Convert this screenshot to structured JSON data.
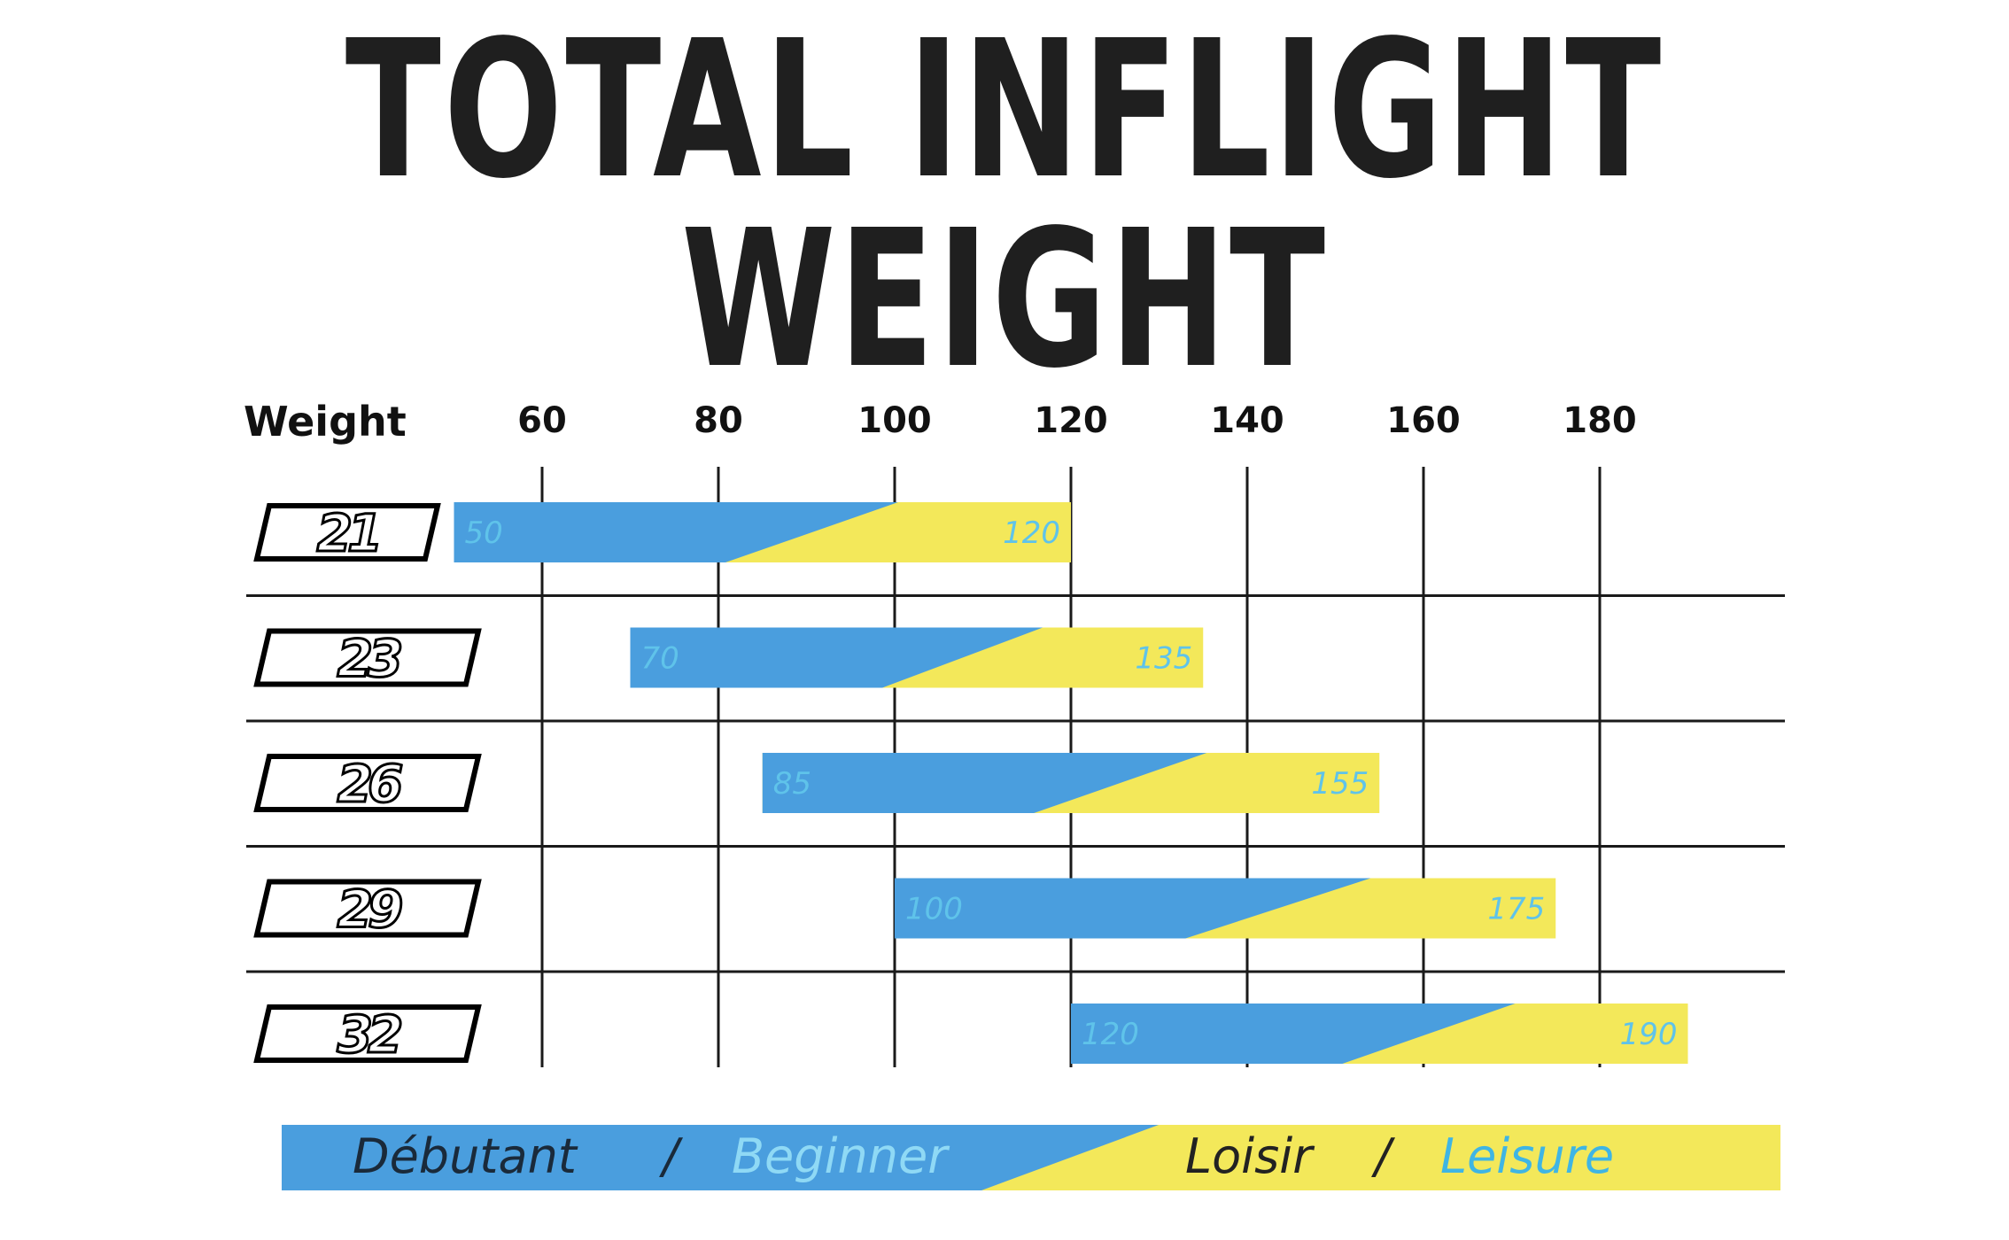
{
  "title": "TOTAL INFLIGHT WEIGHT",
  "chart_data": {
    "type": "bar",
    "orientation": "horizontal-range",
    "xlabel": "Weight",
    "x_ticks": [
      60,
      80,
      100,
      120,
      140,
      160,
      180
    ],
    "categories": [
      "21",
      "23",
      "26",
      "29",
      "32"
    ],
    "series": [
      {
        "name": "Débutant / Beginner",
        "start": [
          50,
          70,
          85,
          100,
          120
        ]
      },
      {
        "name": "Loisir / Leisure",
        "end": [
          120,
          135,
          155,
          175,
          190
        ]
      }
    ],
    "ranges": [
      {
        "model": "21",
        "min": 50,
        "max": 120
      },
      {
        "model": "23",
        "min": 70,
        "max": 135
      },
      {
        "model": "26",
        "min": 85,
        "max": 155
      },
      {
        "model": "29",
        "min": 100,
        "max": 175
      },
      {
        "model": "32",
        "min": 120,
        "max": 190
      }
    ],
    "grid": true,
    "legend_position": "bottom"
  },
  "legend": {
    "beginner_fr": "Débutant",
    "separator": "/",
    "beginner_en": "Beginner",
    "leisure_fr": "Loisir",
    "leisure_en": "Leisure"
  },
  "colors": {
    "beginner": "#4a9ede",
    "leisure": "#f3e85a",
    "grid": "#1a1a1a",
    "label": "#5fc3ea"
  }
}
